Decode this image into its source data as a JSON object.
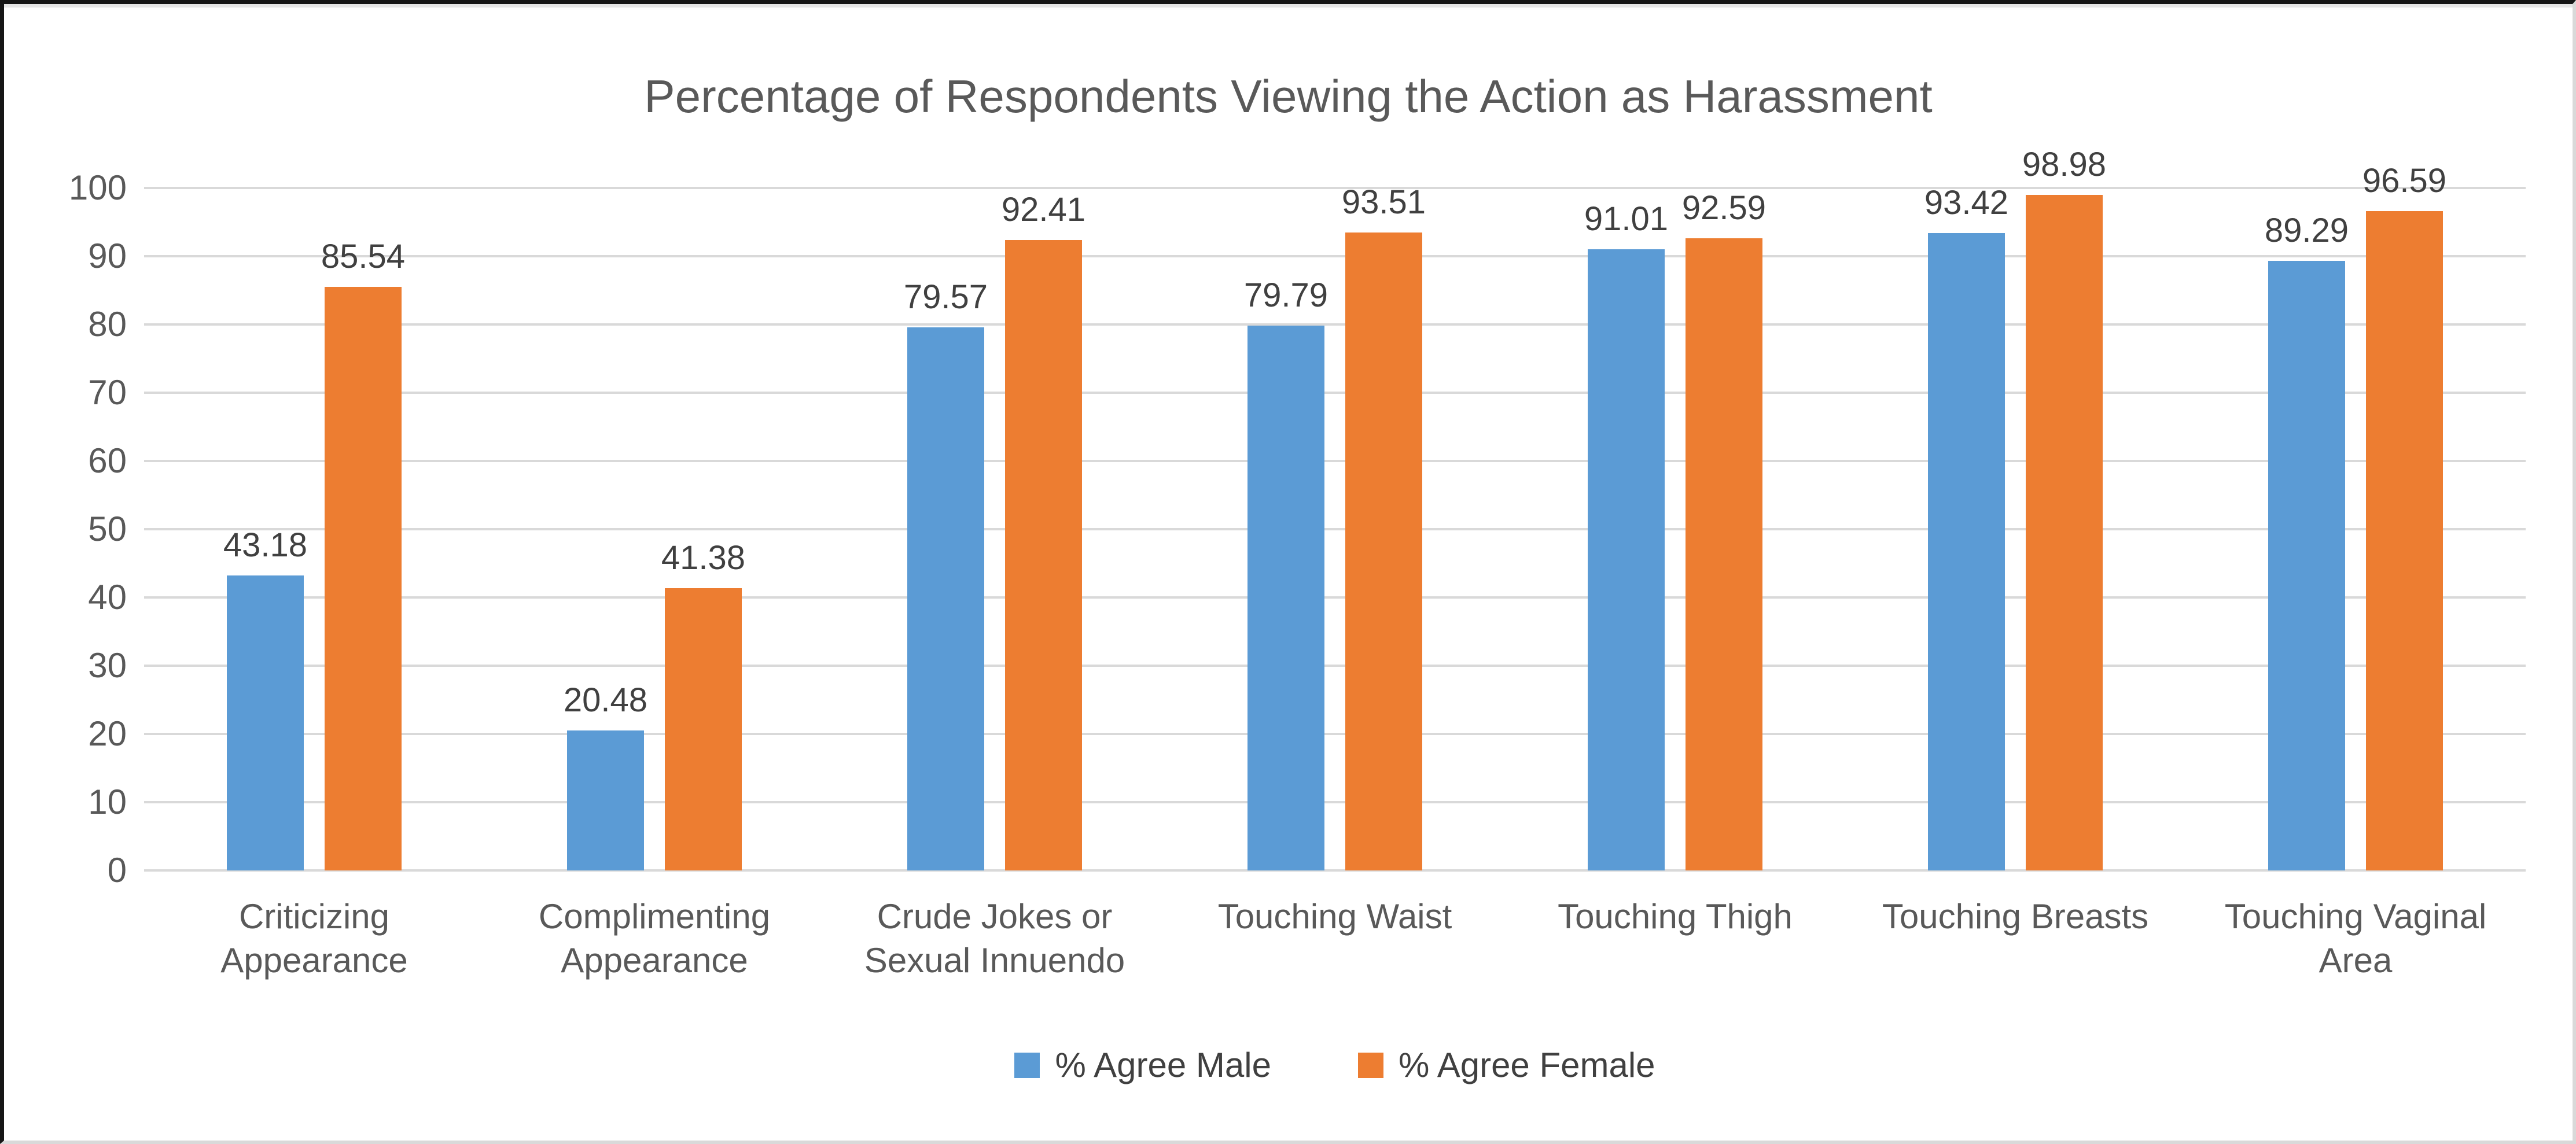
{
  "chart_data": {
    "type": "bar",
    "title": "Percentage of Respondents Viewing the Action as Harassment",
    "categories": [
      "Criticizing Appearance",
      "Complimenting Appearance",
      "Crude Jokes or Sexual Innuendo",
      "Touching Waist",
      "Touching Thigh",
      "Touching Breasts",
      "Touching Vaginal Area"
    ],
    "series": [
      {
        "name": "% Agree Male",
        "color": "#5B9BD5",
        "values": [
          43.18,
          20.48,
          79.57,
          79.79,
          91.01,
          93.42,
          89.29
        ]
      },
      {
        "name": "% Agree Female",
        "color": "#ED7D31",
        "values": [
          85.54,
          41.38,
          92.41,
          93.51,
          92.59,
          98.98,
          96.59
        ]
      }
    ],
    "value_labels_visible": true,
    "value_label_decimals": 2,
    "xlabel": "",
    "ylabel": "",
    "ylim": [
      0,
      100
    ],
    "y_ticks": [
      0,
      10,
      20,
      30,
      40,
      50,
      60,
      70,
      80,
      90,
      100
    ],
    "grid": true,
    "legend_position": "bottom"
  },
  "colors": {
    "background": "#FFFFFF",
    "gridline": "#D9D9D9",
    "title_text": "#595959",
    "tick_text": "#595959",
    "category_text": "#595959",
    "value_label_text": "#404040",
    "legend_text": "#404040",
    "frame_dark": "#161616",
    "frame_light": "#D9D9D9"
  }
}
